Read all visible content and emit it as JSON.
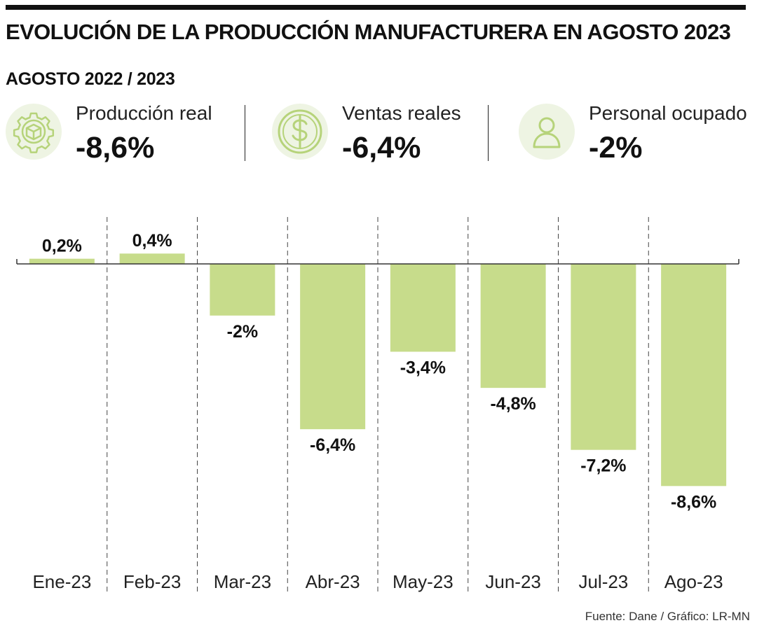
{
  "header": {
    "title": "EVOLUCIÓN DE LA PRODUCCIÓN MANUFACTURERA EN AGOSTO 2023",
    "subtitle": "AGOSTO 2022 / 2023"
  },
  "kpis": [
    {
      "label": "Producción real",
      "value": "-8,6%",
      "icon": "gear-box-icon"
    },
    {
      "label": "Ventas reales",
      "value": "-6,4%",
      "icon": "dollar-icon"
    },
    {
      "label": "Personal ocupado",
      "value": "-2%",
      "icon": "person-icon"
    }
  ],
  "colors": {
    "bar": "#c7dc8b",
    "icon_background": "#eef4e3",
    "icon_stroke": "#b6d37a",
    "text": "#111111"
  },
  "chart_data": {
    "type": "bar",
    "categories": [
      "Ene-23",
      "Feb-23",
      "Mar-23",
      "Abr-23",
      "May-23",
      "Jun-23",
      "Jul-23",
      "Ago-23"
    ],
    "values": [
      0.2,
      0.4,
      -2,
      -6.4,
      -3.4,
      -4.8,
      -7.2,
      -8.6
    ],
    "value_labels": [
      "0,2%",
      "0,4%",
      "-2%",
      "-6,4%",
      "-3,4%",
      "-4,8%",
      "-7,2%",
      "-8,6%"
    ],
    "ylim": [
      -8.6,
      0.4
    ],
    "grid": "vertical dashed separators",
    "legend": "none"
  },
  "footer": {
    "source": "Fuente: Dane / Gráfico: LR-MN"
  }
}
